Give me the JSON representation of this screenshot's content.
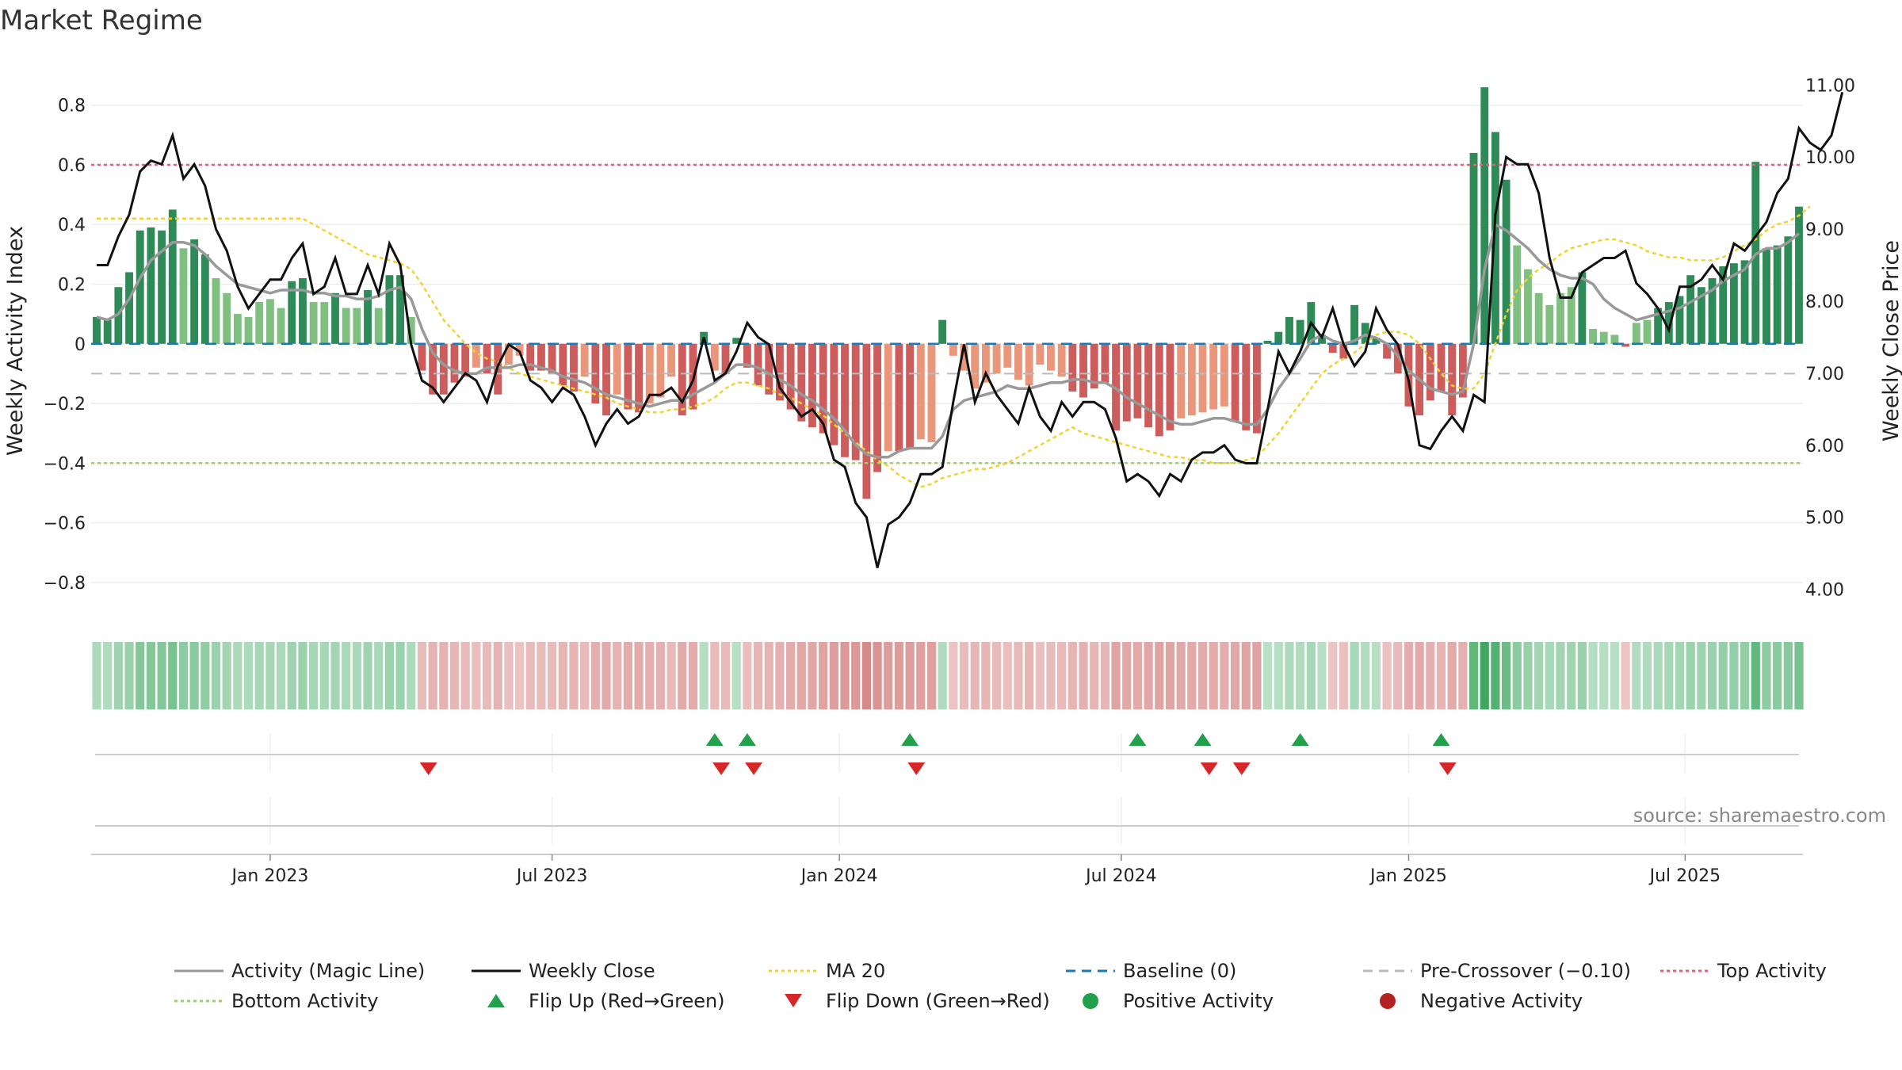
{
  "title": "Market Regime",
  "source": "source: sharemaestro.com",
  "colors": {
    "pos_dark": "#2e8b57",
    "pos_light": "#7fbf7f",
    "neg_dark": "#cd5c5c",
    "neg_light": "#e9967a",
    "close": "#111111",
    "magic": "#999999",
    "ma": "#f2d230",
    "baseline": "#1f77b4",
    "pre": "#bbbbbb",
    "top": "#e0607e",
    "bottom": "#9ad468",
    "flip_up": "#22a04b",
    "flip_down": "#d62728"
  },
  "chart_data": {
    "type": "bar",
    "ylabel": "Weekly Activity Index",
    "y2label": "Weekly Close Price",
    "ylim": [
      -0.92,
      0.94
    ],
    "y2lim": [
      3.6,
      11.3
    ],
    "yticks": [
      "0.8",
      "0.6",
      "0.4",
      "0.2",
      "0",
      "−0.2",
      "−0.4",
      "−0.6",
      "−0.8"
    ],
    "y2ticks": [
      "11.00",
      "10.00",
      "9.00",
      "8.00",
      "7.00",
      "6.00",
      "5.00",
      "4.00"
    ],
    "xticks": [
      "Jan 2023",
      "Jul 2023",
      "Jan 2024",
      "Jul 2024",
      "Jan 2025",
      "Jul 2025"
    ],
    "xtick_index": [
      16,
      42,
      68.5,
      94.5,
      121,
      146.5
    ],
    "levels": {
      "top": 0.6,
      "bottom": -0.4,
      "pre": -0.1,
      "baseline": 0
    },
    "activity": [
      0.09,
      0.08,
      0.19,
      0.24,
      0.38,
      0.39,
      0.38,
      0.45,
      0.32,
      0.35,
      0.3,
      0.22,
      0.17,
      0.1,
      0.09,
      0.14,
      0.15,
      0.12,
      0.21,
      0.22,
      0.14,
      0.14,
      0.17,
      0.12,
      0.12,
      0.18,
      0.12,
      0.23,
      0.23,
      0.09,
      -0.09,
      -0.17,
      -0.17,
      -0.13,
      -0.11,
      -0.08,
      -0.1,
      -0.17,
      -0.07,
      -0.04,
      -0.09,
      -0.09,
      -0.1,
      -0.14,
      -0.16,
      -0.11,
      -0.2,
      -0.24,
      -0.17,
      -0.22,
      -0.23,
      -0.2,
      -0.18,
      -0.11,
      -0.24,
      -0.22,
      0.04,
      -0.09,
      -0.1,
      0.02,
      -0.08,
      -0.14,
      -0.17,
      -0.19,
      -0.22,
      -0.26,
      -0.28,
      -0.3,
      -0.34,
      -0.38,
      -0.39,
      -0.52,
      -0.43,
      -0.36,
      -0.36,
      -0.35,
      -0.32,
      -0.33,
      0.08,
      -0.04,
      -0.09,
      -0.15,
      -0.13,
      -0.1,
      -0.08,
      -0.12,
      -0.14,
      -0.07,
      -0.09,
      -0.11,
      -0.16,
      -0.18,
      -0.15,
      -0.13,
      -0.29,
      -0.26,
      -0.25,
      -0.28,
      -0.31,
      -0.29,
      -0.25,
      -0.24,
      -0.23,
      -0.22,
      -0.21,
      -0.26,
      -0.29,
      -0.3,
      0.01,
      0.04,
      0.09,
      0.08,
      0.14,
      0.03,
      -0.03,
      -0.05,
      0.13,
      0.07,
      0.02,
      -0.05,
      -0.1,
      -0.21,
      -0.24,
      -0.19,
      -0.16,
      -0.24,
      -0.18,
      0.64,
      0.86,
      0.71,
      0.55,
      0.33,
      0.25,
      0.17,
      0.13,
      0.17,
      0.19,
      0.24,
      0.05,
      0.04,
      0.03,
      -0.01,
      0.07,
      0.08,
      0.12,
      0.14,
      0.16,
      0.23,
      0.19,
      0.22,
      0.26,
      0.27,
      0.28,
      0.61,
      0.32,
      0.33,
      0.36,
      0.46
    ],
    "close": [
      8.5,
      8.5,
      8.9,
      9.2,
      9.8,
      9.95,
      9.9,
      10.3,
      9.7,
      9.9,
      9.6,
      9.0,
      8.7,
      8.2,
      7.9,
      8.1,
      8.3,
      8.3,
      8.6,
      8.8,
      8.1,
      8.2,
      8.6,
      8.1,
      8.1,
      8.5,
      8.1,
      8.8,
      8.5,
      7.4,
      6.9,
      6.8,
      6.6,
      6.8,
      7.0,
      6.9,
      6.6,
      7.1,
      7.4,
      7.3,
      6.9,
      6.8,
      6.6,
      6.8,
      6.7,
      6.4,
      6.0,
      6.3,
      6.5,
      6.3,
      6.4,
      6.7,
      6.7,
      6.8,
      6.6,
      6.9,
      7.5,
      6.9,
      7.0,
      7.3,
      7.7,
      7.5,
      7.4,
      6.8,
      6.6,
      6.4,
      6.5,
      6.3,
      5.8,
      5.7,
      5.2,
      5.0,
      4.3,
      4.9,
      5.0,
      5.2,
      5.6,
      5.6,
      5.7,
      6.6,
      7.4,
      6.6,
      7.0,
      6.7,
      6.5,
      6.3,
      6.8,
      6.4,
      6.2,
      6.6,
      6.4,
      6.6,
      6.6,
      6.5,
      6.1,
      5.5,
      5.6,
      5.5,
      5.3,
      5.6,
      5.5,
      5.8,
      5.9,
      5.9,
      6.0,
      5.8,
      5.75,
      5.75,
      6.5,
      7.3,
      7.0,
      7.3,
      7.7,
      7.5,
      7.9,
      7.4,
      7.1,
      7.3,
      7.9,
      7.6,
      7.4,
      6.9,
      6.0,
      5.95,
      6.2,
      6.4,
      6.2,
      6.7,
      6.6,
      9.2,
      10.0,
      9.9,
      9.9,
      9.5,
      8.6,
      8.05,
      8.05,
      8.4,
      8.5,
      8.6,
      8.6,
      8.7,
      8.25,
      8.1,
      7.9,
      7.6,
      8.2,
      8.2,
      8.3,
      8.5,
      8.3,
      8.8,
      8.7,
      8.9,
      9.1,
      9.5,
      9.7,
      10.4,
      10.2,
      10.1,
      10.3,
      10.9
    ],
    "magic": [
      0.09,
      0.08,
      0.1,
      0.15,
      0.22,
      0.28,
      0.31,
      0.34,
      0.34,
      0.33,
      0.3,
      0.26,
      0.23,
      0.2,
      0.19,
      0.18,
      0.17,
      0.18,
      0.18,
      0.18,
      0.17,
      0.17,
      0.16,
      0.16,
      0.15,
      0.15,
      0.16,
      0.18,
      0.19,
      0.15,
      0.05,
      -0.03,
      -0.07,
      -0.09,
      -0.1,
      -0.1,
      -0.08,
      -0.08,
      -0.08,
      -0.07,
      -0.07,
      -0.08,
      -0.09,
      -0.11,
      -0.12,
      -0.13,
      -0.15,
      -0.17,
      -0.18,
      -0.19,
      -0.2,
      -0.21,
      -0.2,
      -0.19,
      -0.19,
      -0.17,
      -0.15,
      -0.13,
      -0.1,
      -0.07,
      -0.07,
      -0.08,
      -0.1,
      -0.12,
      -0.14,
      -0.17,
      -0.19,
      -0.22,
      -0.25,
      -0.29,
      -0.34,
      -0.37,
      -0.38,
      -0.38,
      -0.36,
      -0.35,
      -0.35,
      -0.35,
      -0.31,
      -0.22,
      -0.19,
      -0.18,
      -0.17,
      -0.16,
      -0.14,
      -0.15,
      -0.15,
      -0.14,
      -0.13,
      -0.13,
      -0.12,
      -0.12,
      -0.13,
      -0.13,
      -0.15,
      -0.18,
      -0.2,
      -0.22,
      -0.24,
      -0.26,
      -0.27,
      -0.27,
      -0.26,
      -0.25,
      -0.25,
      -0.26,
      -0.27,
      -0.27,
      -0.22,
      -0.15,
      -0.1,
      -0.05,
      0.01,
      0.03,
      0.01,
      0.0,
      0.01,
      0.03,
      0.02,
      0.0,
      -0.04,
      -0.09,
      -0.12,
      -0.15,
      -0.16,
      -0.17,
      -0.16,
      0.0,
      0.25,
      0.4,
      0.38,
      0.35,
      0.32,
      0.28,
      0.25,
      0.23,
      0.22,
      0.22,
      0.2,
      0.15,
      0.12,
      0.1,
      0.08,
      0.09,
      0.1,
      0.11,
      0.12,
      0.14,
      0.16,
      0.18,
      0.21,
      0.23,
      0.25,
      0.3,
      0.32,
      0.32,
      0.34,
      0.37
    ],
    "ma20": [
      0.42,
      0.42,
      0.42,
      0.42,
      0.42,
      0.42,
      0.42,
      0.42,
      0.42,
      0.42,
      0.42,
      0.42,
      0.42,
      0.42,
      0.42,
      0.42,
      0.42,
      0.42,
      0.42,
      0.42,
      0.4,
      0.38,
      0.36,
      0.34,
      0.32,
      0.3,
      0.29,
      0.28,
      0.27,
      0.25,
      0.2,
      0.14,
      0.08,
      0.04,
      0.0,
      -0.03,
      -0.05,
      -0.06,
      -0.08,
      -0.1,
      -0.11,
      -0.12,
      -0.13,
      -0.14,
      -0.15,
      -0.16,
      -0.17,
      -0.18,
      -0.2,
      -0.21,
      -0.22,
      -0.23,
      -0.23,
      -0.22,
      -0.22,
      -0.21,
      -0.2,
      -0.18,
      -0.15,
      -0.13,
      -0.13,
      -0.14,
      -0.15,
      -0.17,
      -0.18,
      -0.2,
      -0.22,
      -0.24,
      -0.27,
      -0.3,
      -0.33,
      -0.36,
      -0.39,
      -0.41,
      -0.44,
      -0.46,
      -0.48,
      -0.47,
      -0.45,
      -0.44,
      -0.43,
      -0.42,
      -0.42,
      -0.41,
      -0.4,
      -0.38,
      -0.36,
      -0.34,
      -0.32,
      -0.3,
      -0.28,
      -0.3,
      -0.31,
      -0.32,
      -0.33,
      -0.34,
      -0.35,
      -0.36,
      -0.37,
      -0.38,
      -0.38,
      -0.39,
      -0.39,
      -0.4,
      -0.4,
      -0.4,
      -0.39,
      -0.38,
      -0.34,
      -0.3,
      -0.25,
      -0.2,
      -0.15,
      -0.1,
      -0.07,
      -0.05,
      -0.03,
      0.0,
      0.03,
      0.04,
      0.04,
      0.03,
      0.0,
      -0.05,
      -0.1,
      -0.14,
      -0.15,
      -0.15,
      -0.1,
      0.0,
      0.1,
      0.18,
      0.22,
      0.25,
      0.27,
      0.3,
      0.32,
      0.33,
      0.34,
      0.35,
      0.35,
      0.34,
      0.33,
      0.31,
      0.3,
      0.29,
      0.29,
      0.28,
      0.28,
      0.28,
      0.29,
      0.31,
      0.33,
      0.35,
      0.38,
      0.4,
      0.41,
      0.43,
      0.46
    ],
    "flip_up": [
      57,
      60,
      75,
      96,
      102,
      111,
      124
    ],
    "flip_down": [
      30,
      57,
      60,
      75,
      102,
      105,
      124
    ]
  },
  "legend": [
    {
      "label": "Activity (Magic Line)",
      "kind": "line",
      "color": "#999999",
      "dash": ""
    },
    {
      "label": "Weekly Close",
      "kind": "line",
      "color": "#111111",
      "dash": ""
    },
    {
      "label": "MA 20",
      "kind": "line",
      "color": "#f2d230",
      "dash": "4,4"
    },
    {
      "label": "Baseline (0)",
      "kind": "line",
      "color": "#1f77b4",
      "dash": "12,8"
    },
    {
      "label": "Pre-Crossover (−0.10)",
      "kind": "line",
      "color": "#bbbbbb",
      "dash": "12,8"
    },
    {
      "label": "Top Activity",
      "kind": "line",
      "color": "#e0607e",
      "dash": "4,4"
    },
    {
      "label": "Bottom Activity",
      "kind": "line",
      "color": "#9ad468",
      "dash": "4,4"
    },
    {
      "label": "Flip Up (Red→Green)",
      "kind": "up",
      "color": "#22a04b",
      "dash": ""
    },
    {
      "label": "Flip Down (Green→Red)",
      "kind": "down",
      "color": "#d62728",
      "dash": ""
    },
    {
      "label": "Positive Activity",
      "kind": "dot",
      "color": "#22a04b",
      "dash": ""
    },
    {
      "label": "Negative Activity",
      "kind": "dot",
      "color": "#b22222",
      "dash": ""
    }
  ]
}
